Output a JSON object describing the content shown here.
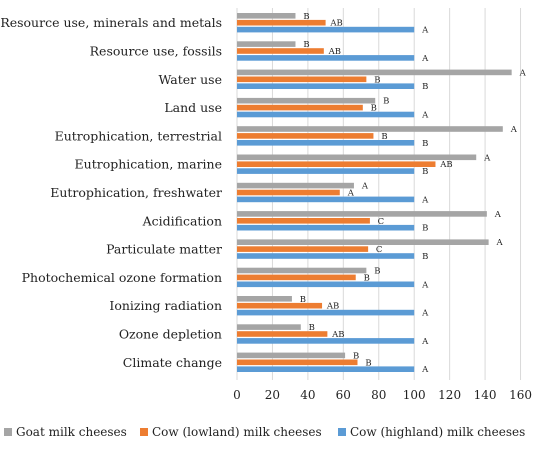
{
  "chart_data": {
    "type": "bar",
    "orientation": "horizontal",
    "categories": [
      "Resource use, minerals and metals",
      "Resource use, fossils",
      "Water use",
      "Land use",
      "Eutrophication, terrestrial",
      "Eutrophication, marine",
      "Eutrophication, freshwater",
      "Acidification",
      "Particulate matter",
      "Photochemical ozone formation",
      "Ionizing radiation",
      "Ozone depletion",
      "Climate change"
    ],
    "series": [
      {
        "name": "Goat milk cheeses",
        "color": "#a5a5a5",
        "values": [
          33,
          33,
          155,
          78,
          150,
          135,
          66,
          141,
          142,
          73,
          31,
          36,
          61
        ],
        "labels": [
          "B",
          "B",
          "A",
          "B",
          "A",
          "A",
          "A",
          "A",
          "A",
          "B",
          "B",
          "B",
          "B"
        ]
      },
      {
        "name": "Cow (lowland) milk cheeses",
        "color": "#ed7d31",
        "values": [
          50,
          49,
          73,
          71,
          77,
          112,
          58,
          75,
          74,
          67,
          48,
          51,
          68
        ],
        "labels": [
          "AB",
          "AB",
          "B",
          "B",
          "B",
          "AB",
          "A",
          "C",
          "C",
          "B",
          "AB",
          "AB",
          "B"
        ]
      },
      {
        "name": "Cow (highland) milk cheeses",
        "color": "#5b9bd5",
        "values": [
          100,
          100,
          100,
          100,
          100,
          100,
          100,
          100,
          100,
          100,
          100,
          100,
          100
        ],
        "labels": [
          "A",
          "A",
          "B",
          "A",
          "B",
          "B",
          "A",
          "B",
          "B",
          "A",
          "A",
          "A",
          "A"
        ]
      }
    ],
    "xlim": [
      0,
      160
    ],
    "xticks": [
      0,
      20,
      40,
      60,
      80,
      100,
      120,
      140,
      160
    ],
    "grid": true,
    "legend_position": "bottom"
  }
}
